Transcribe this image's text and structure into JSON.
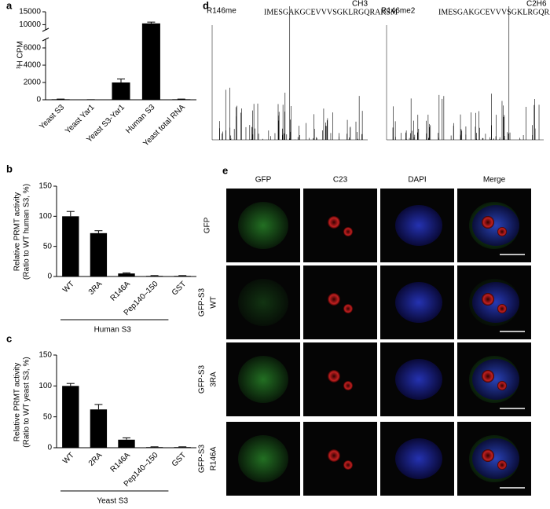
{
  "chart_data": [
    {
      "type": "bar",
      "panel": "a",
      "ylabel": "³H CPM",
      "categories": [
        "Yeast S3",
        "Yeast Yar1",
        "Yeast S3-Yar1",
        "Human S3",
        "Yeast total RNA"
      ],
      "values": [
        60,
        10,
        2000,
        10500,
        60
      ],
      "errors": [
        20,
        5,
        400,
        500,
        20
      ],
      "color": "#000000",
      "ylim": [
        0,
        15000
      ],
      "axis_break": [
        7000,
        8000
      ],
      "yticks": [
        0,
        2000,
        4000,
        6000,
        10000,
        15000
      ]
    },
    {
      "type": "bar",
      "panel": "b",
      "ylabel": [
        "Relative PRMT activity",
        "(Ratio to WT human S3, %)"
      ],
      "categories": [
        "WT",
        "3RA",
        "R146A",
        "Pep140–150",
        "GST"
      ],
      "values": [
        100,
        72,
        5,
        1,
        1
      ],
      "errors": [
        8,
        4,
        1,
        0.5,
        0.5
      ],
      "color": "#000000",
      "ylim": [
        0,
        150
      ],
      "yticks": [
        0,
        50,
        100,
        150
      ],
      "group_label": "Human S3"
    },
    {
      "type": "bar",
      "panel": "c",
      "ylabel": [
        "Relative PRMT activity",
        "(Ratio to WT yeast S3, %)"
      ],
      "categories": [
        "WT",
        "2RA",
        "R146A",
        "Pep140–150",
        "GST"
      ],
      "values": [
        100,
        62,
        13,
        1,
        1
      ],
      "errors": [
        4,
        8,
        3,
        0.5,
        0.5
      ],
      "color": "#000000",
      "ylim": [
        0,
        150
      ],
      "yticks": [
        0,
        50,
        100,
        150
      ],
      "group_label": "Yeast S3"
    }
  ],
  "spectra": {
    "panel": "d",
    "items": [
      {
        "title": "R146me",
        "sequence": "IMESGAKGCEVVVSGKLRGQRAKSM",
        "modification": "CH3"
      },
      {
        "title": "R146me2",
        "sequence": "IMESGAKGCEVVVSGKLRGQRAKSM",
        "modification": "C2H6"
      }
    ]
  },
  "microscopy": {
    "panel": "e",
    "columns": [
      "GFP",
      "C23",
      "DAPI",
      "Merge"
    ],
    "rows": [
      [
        "GFP"
      ],
      [
        "GFP-S3",
        "WT"
      ],
      [
        "GFP-S3",
        "3RA"
      ],
      [
        "GFP-S3",
        "R146A"
      ]
    ]
  }
}
